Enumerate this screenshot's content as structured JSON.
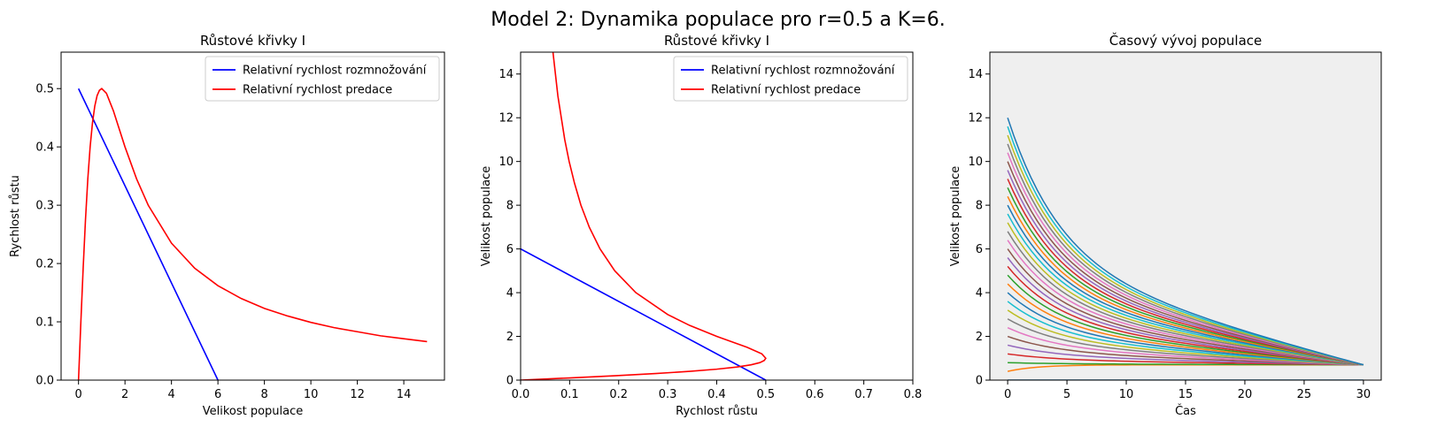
{
  "figure": {
    "suptitle": "Model 2: Dynamika populace pro r=0.5 a K=6."
  },
  "chart_data": [
    {
      "type": "line",
      "title": "Růstové křivky I",
      "xlabel": "Velikost populace",
      "ylabel": "Rychlost růstu",
      "xlim": [
        -0.75,
        15.75
      ],
      "ylim": [
        0,
        0.5625
      ],
      "xticks": [
        0,
        2,
        4,
        6,
        8,
        10,
        12,
        14
      ],
      "yticks": [
        0.0,
        0.1,
        0.2,
        0.3,
        0.4,
        0.5
      ],
      "legend_position": "top-right",
      "series": [
        {
          "name": "Relativní rychlost rozmnožování",
          "color": "#0000ff",
          "x": [
            0,
            6
          ],
          "y": [
            0.5,
            0
          ]
        },
        {
          "name": "Relativní rychlost predace",
          "color": "#ff0000",
          "x": [
            0,
            0.1,
            0.2,
            0.3,
            0.4,
            0.5,
            0.6,
            0.7,
            0.8,
            0.9,
            1.0,
            1.2,
            1.5,
            2,
            2.5,
            3,
            4,
            5,
            6,
            7,
            8,
            9,
            10,
            11,
            12,
            13,
            14,
            15
          ],
          "y": [
            0,
            0.099,
            0.192,
            0.275,
            0.345,
            0.4,
            0.441,
            0.47,
            0.488,
            0.497,
            0.5,
            0.492,
            0.462,
            0.4,
            0.345,
            0.3,
            0.235,
            0.192,
            0.162,
            0.14,
            0.123,
            0.11,
            0.099,
            0.09,
            0.083,
            0.076,
            0.071,
            0.066
          ]
        }
      ]
    },
    {
      "type": "line",
      "title": "Růstové křivky I",
      "xlabel": "Rychlost růstu",
      "ylabel": "Velikost populace",
      "xlim": [
        0,
        0.8
      ],
      "ylim": [
        0,
        15
      ],
      "xticks": [
        0.0,
        0.1,
        0.2,
        0.3,
        0.4,
        0.5,
        0.6,
        0.7,
        0.8
      ],
      "yticks": [
        0,
        2,
        4,
        6,
        8,
        10,
        12,
        14
      ],
      "legend_position": "top-right",
      "series": [
        {
          "name": "Relativní rychlost rozmnožování",
          "color": "#0000ff",
          "x": [
            0,
            0.5
          ],
          "y": [
            6,
            0
          ]
        },
        {
          "name": "Relativní rychlost predace",
          "color": "#ff0000",
          "x": [
            0,
            0.099,
            0.192,
            0.275,
            0.345,
            0.4,
            0.441,
            0.47,
            0.488,
            0.497,
            0.5,
            0.492,
            0.462,
            0.4,
            0.345,
            0.3,
            0.235,
            0.192,
            0.162,
            0.14,
            0.123,
            0.11,
            0.099,
            0.09,
            0.083,
            0.076,
            0.071,
            0.066
          ],
          "y": [
            0,
            0.1,
            0.2,
            0.3,
            0.4,
            0.5,
            0.6,
            0.7,
            0.8,
            0.9,
            1.0,
            1.2,
            1.5,
            2,
            2.5,
            3,
            4,
            5,
            6,
            7,
            8,
            9,
            10,
            11,
            12,
            13,
            14,
            15
          ]
        }
      ]
    },
    {
      "type": "line",
      "title": "Časový vývoj populace",
      "xlabel": "Čas",
      "ylabel": "Velikost populace",
      "xlim": [
        -1.5,
        31.5
      ],
      "ylim": [
        0,
        15
      ],
      "xticks": [
        0,
        5,
        10,
        15,
        20,
        25,
        30
      ],
      "yticks": [
        0,
        2,
        4,
        6,
        8,
        10,
        12,
        14
      ],
      "background": "#efefef",
      "palette": [
        "#1f77b4",
        "#ff7f0e",
        "#2ca02c",
        "#d62728",
        "#9467bd",
        "#8c564b",
        "#e377c2",
        "#7f7f7f",
        "#bcbd22",
        "#17becf"
      ],
      "t_end": 30,
      "asymptote": 0.7,
      "initial_values": [
        0.0,
        0.4,
        0.8,
        1.2,
        1.6,
        2.0,
        2.4,
        2.8,
        3.2,
        3.6,
        4.0,
        4.4,
        4.8,
        5.2,
        5.6,
        6.0,
        6.4,
        6.8,
        7.2,
        7.6,
        8.0,
        8.4,
        8.8,
        9.2,
        9.6,
        10.0,
        10.4,
        10.8,
        11.2,
        11.6,
        12.0
      ]
    }
  ]
}
